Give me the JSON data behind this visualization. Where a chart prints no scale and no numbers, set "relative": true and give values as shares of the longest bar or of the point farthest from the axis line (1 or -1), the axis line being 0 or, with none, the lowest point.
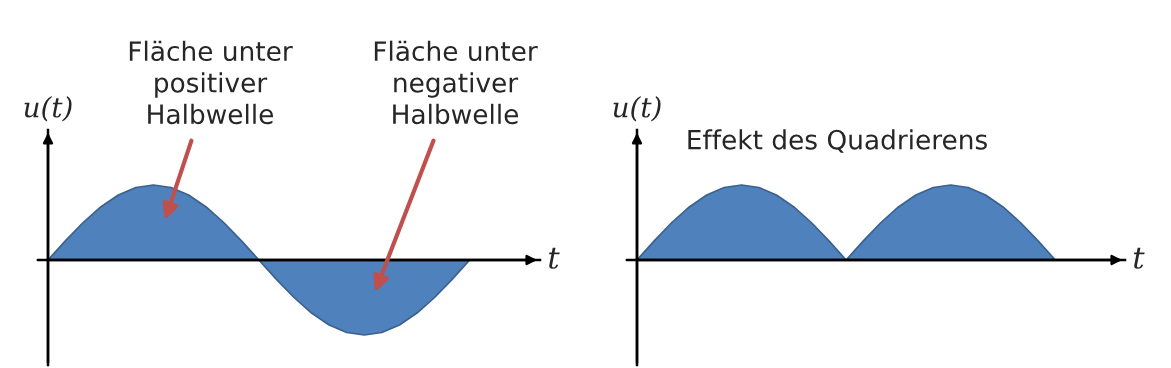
{
  "chart_data": [
    {
      "type": "area",
      "relative": true,
      "xlabel": "t",
      "ylabel": "u(t)",
      "annotations": [
        "Fläche unter\npositiver\nHalbwelle",
        "Fläche unter\nnegativer\nHalbwelle"
      ],
      "categories": [
        null,
        null,
        null,
        null,
        null,
        null,
        null,
        null,
        null,
        null,
        null,
        null,
        null,
        null,
        null,
        null,
        null,
        null,
        null,
        null,
        null,
        null,
        null,
        null,
        null,
        null,
        null,
        null,
        null
      ],
      "series": [
        {
          "color": "#4f81bd",
          "values": [
            0,
            0.259,
            0.5,
            0.707,
            0.866,
            0.966,
            1,
            0.966,
            0.866,
            0.707,
            0.5,
            0.259,
            0,
            -0.259,
            -0.5,
            -0.707,
            -0.866,
            -0.966,
            -1,
            -0.966,
            -0.866,
            -0.707,
            -0.5,
            -0.259,
            0,
            null,
            null,
            null,
            null
          ]
        }
      ]
    },
    {
      "type": "area",
      "relative": true,
      "xlabel": "t",
      "ylabel": "u(t)",
      "title": "Effekt des Quadrierens",
      "categories": [
        null,
        null,
        null,
        null,
        null,
        null,
        null,
        null,
        null,
        null,
        null,
        null,
        null,
        null,
        null,
        null,
        null,
        null,
        null,
        null,
        null,
        null,
        null,
        null,
        null,
        null,
        null,
        null,
        null
      ],
      "series": [
        {
          "color": "#4f81bd",
          "values": [
            0,
            0.259,
            0.5,
            0.707,
            0.866,
            0.966,
            1,
            0.966,
            0.866,
            0.707,
            0.5,
            0.259,
            0,
            0.259,
            0.5,
            0.707,
            0.866,
            0.966,
            1,
            0.966,
            0.866,
            0.707,
            0.5,
            0.259,
            0,
            null,
            null,
            null,
            null
          ]
        }
      ]
    }
  ]
}
